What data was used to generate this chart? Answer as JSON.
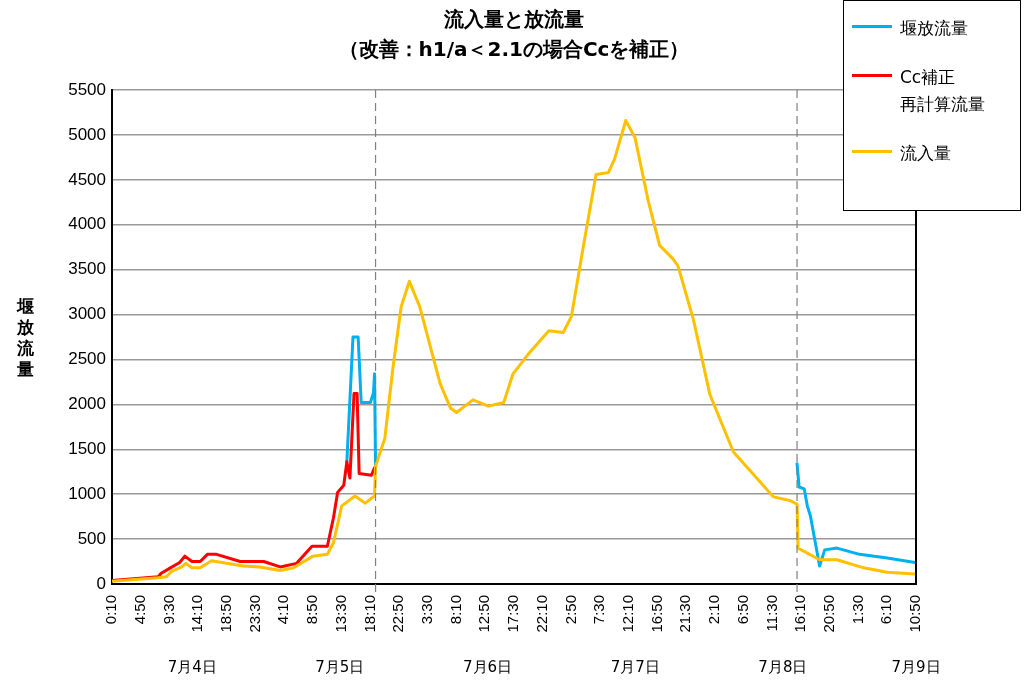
{
  "chart_data": {
    "type": "line",
    "title": "流入量と放流量",
    "subtitle": "（改善：h1/a＜2.1の場合Ccを補正）",
    "ylabel": "堰放流量",
    "xlim": [
      "--07-04T00:10",
      "--07-09T10:50"
    ],
    "xticks": [
      {
        "value": "--07-04T00:10",
        "label": "0:10"
      },
      {
        "value": "--07-04T04:50",
        "label": "4:50"
      },
      {
        "value": "--07-04T09:30",
        "label": "9:30"
      },
      {
        "value": "--07-04T14:10",
        "label": "14:10"
      },
      {
        "value": "--07-04T18:50",
        "label": "18:50"
      },
      {
        "value": "--07-04T23:30",
        "label": "23:30"
      },
      {
        "value": "--07-05T04:10",
        "label": "4:10"
      },
      {
        "value": "--07-05T08:50",
        "label": "8:50"
      },
      {
        "value": "--07-05T13:30",
        "label": "13:30"
      },
      {
        "value": "--07-05T18:10",
        "label": "18:10"
      },
      {
        "value": "--07-05T22:50",
        "label": "22:50"
      },
      {
        "value": "--07-06T03:30",
        "label": "3:30"
      },
      {
        "value": "--07-06T08:10",
        "label": "8:10"
      },
      {
        "value": "--07-06T12:50",
        "label": "12:50"
      },
      {
        "value": "--07-06T17:30",
        "label": "17:30"
      },
      {
        "value": "--07-06T22:10",
        "label": "22:10"
      },
      {
        "value": "--07-07T02:50",
        "label": "2:50"
      },
      {
        "value": "--07-07T07:30",
        "label": "7:30"
      },
      {
        "value": "--07-07T12:10",
        "label": "12:10"
      },
      {
        "value": "--07-07T16:50",
        "label": "16:50"
      },
      {
        "value": "--07-07T21:30",
        "label": "21:30"
      },
      {
        "value": "--07-08T02:10",
        "label": "2:10"
      },
      {
        "value": "--07-08T06:50",
        "label": "6:50"
      },
      {
        "value": "--07-08T11:30",
        "label": "11:30"
      },
      {
        "value": "--07-08T16:10",
        "label": "16:10"
      },
      {
        "value": "--07-08T20:50",
        "label": "20:50"
      },
      {
        "value": "--07-09T01:30",
        "label": "1:30"
      },
      {
        "value": "--07-09T06:10",
        "label": "6:10"
      },
      {
        "value": "--07-09T10:50",
        "label": "10:50"
      }
    ],
    "ylim": [
      0,
      5500
    ],
    "yticks": [
      0,
      500,
      1000,
      1500,
      2000,
      2500,
      3000,
      3500,
      4000,
      4500,
      5000,
      5500
    ],
    "grid": "y",
    "legend": "top right",
    "series": [
      {
        "name": "堰放流量",
        "color": "#00b0f0",
        "x": [
          "--07-05T14:20",
          "--07-05T15:20",
          "--07-05T16:10",
          "--07-05T16:40",
          "--07-05T18:10",
          "--07-05T18:40",
          "--07-05T18:50",
          "--07-05T19:00",
          "--07-07T05:00",
          "--07-08T15:30",
          "--07-08T15:50",
          "--07-08T16:40",
          "--07-08T17:10",
          "--07-08T17:40",
          "--07-08T19:10",
          "--07-08T20:00",
          "--07-08T22:00",
          "--07-09T01:40",
          "--07-09T06:10",
          "--07-09T10:40"
        ],
        "values": [
          1360,
          2750,
          2750,
          2020,
          2020,
          2130,
          2340,
          1310,
          null,
          1340,
          1080,
          1060,
          870,
          760,
          200,
          380,
          400,
          330,
          290,
          240
        ]
      },
      {
        "name": "Cc補正再計算流量",
        "color": "#ff0000",
        "x": [
          "--07-04T00:10",
          "--07-04T07:40",
          "--07-04T08:10",
          "--07-04T09:40",
          "--07-04T11:10",
          "--07-04T12:00",
          "--07-04T13:10",
          "--07-04T14:30",
          "--07-04T15:40",
          "--07-04T17:10",
          "--07-04T21:00",
          "--07-05T00:50",
          "--07-05T03:30",
          "--07-05T06:10",
          "--07-05T08:40",
          "--07-05T11:10",
          "--07-05T12:10",
          "--07-05T12:50",
          "--07-05T13:50",
          "--07-05T14:20",
          "--07-05T14:50",
          "--07-05T15:30",
          "--07-05T16:00",
          "--07-05T16:20",
          "--07-05T18:20",
          "--07-05T18:40",
          "--07-05T19:00"
        ],
        "values": [
          40,
          80,
          120,
          180,
          240,
          310,
          250,
          250,
          330,
          330,
          250,
          250,
          190,
          230,
          420,
          420,
          740,
          1020,
          1100,
          1360,
          1180,
          2120,
          2120,
          1230,
          1210,
          1270,
          1310
        ]
      },
      {
        "name": "流入量",
        "color": "#ffc000",
        "x": [
          "--07-04T00:10",
          "--07-04T07:40",
          "--07-04T09:00",
          "--07-04T09:50",
          "--07-04T11:30",
          "--07-04T12:10",
          "--07-04T13:10",
          "--07-04T14:30",
          "--07-04T16:20",
          "--07-04T21:30",
          "--07-05T00:10",
          "--07-05T03:30",
          "--07-05T05:40",
          "--07-05T08:50",
          "--07-05T11:10",
          "--07-05T12:10",
          "--07-05T13:30",
          "--07-05T15:40",
          "--07-05T17:20",
          "--07-05T18:50",
          "--07-05T19:00",
          "--07-05T20:30",
          "--07-05T21:50",
          "--07-05T23:10",
          "--07-06T00:30",
          "--07-06T02:10",
          "--07-06T05:30",
          "--07-06T07:10",
          "--07-06T08:10",
          "--07-06T10:50",
          "--07-06T13:20",
          "--07-06T15:50",
          "--07-06T17:20",
          "--07-06T19:50",
          "--07-06T23:10",
          "--07-07T01:30",
          "--07-07T02:50",
          "--07-07T05:00",
          "--07-07T06:50",
          "--07-07T08:50",
          "--07-07T09:50",
          "--07-07T11:40",
          "--07-07T13:10",
          "--07-07T15:20",
          "--07-07T17:10",
          "--07-07T19:20",
          "--07-07T20:10",
          "--07-07T22:40",
          "--07-08T01:20",
          "--07-08T05:10",
          "--07-08T11:40",
          "--07-08T14:20",
          "--07-08T15:30",
          "--07-08T15:40",
          "--07-08T19:10",
          "--07-08T22:00",
          "--07-09T02:20",
          "--07-09T06:10",
          "--07-09T10:40"
        ],
        "values": [
          30,
          70,
          80,
          140,
          190,
          230,
          180,
          180,
          260,
          200,
          190,
          150,
          180,
          310,
          330,
          460,
          870,
          980,
          900,
          980,
          1310,
          1620,
          2410,
          3090,
          3370,
          3090,
          2230,
          1960,
          1910,
          2050,
          1980,
          2020,
          2340,
          2560,
          2820,
          2800,
          2980,
          3850,
          4560,
          4580,
          4730,
          5160,
          4970,
          4260,
          3770,
          3620,
          3540,
          2940,
          2110,
          1470,
          970,
          930,
          890,
          400,
          270,
          270,
          180,
          130,
          110
        ]
      }
    ],
    "ref_lines": [
      {
        "axis": "x",
        "value": "--07-05T19:00",
        "color": "#808080",
        "line_style": "dashed"
      },
      {
        "axis": "x",
        "value": "--07-08T15:30",
        "color": "#808080",
        "line_style": "dashed"
      }
    ],
    "annotations": [
      "7月4日",
      "7月5日",
      "7月6日",
      "7月7日",
      "7月8日",
      "7月9日"
    ]
  }
}
